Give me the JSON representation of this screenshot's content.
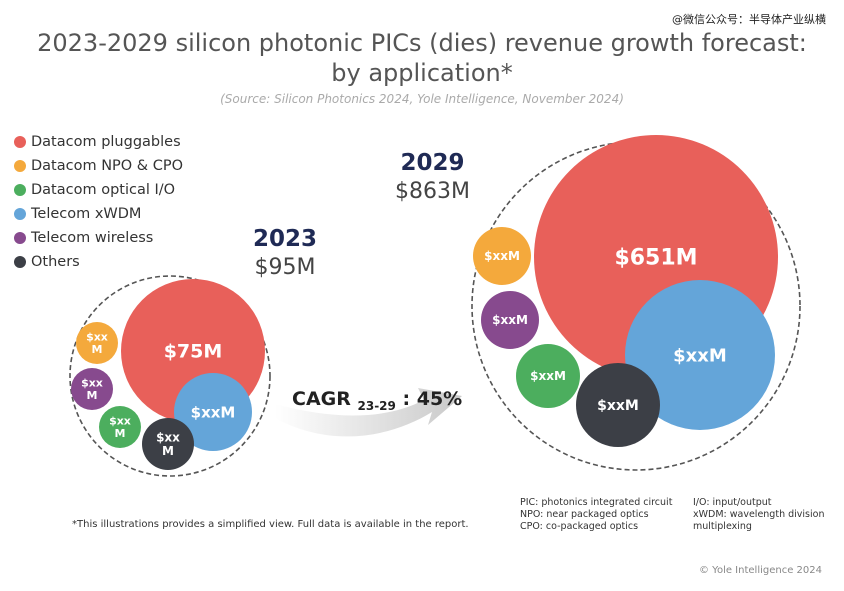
{
  "watermark": "@微信公众号：半导体产业纵横",
  "title_line1": "2023-2029 silicon photonic PICs (dies) revenue growth forecast:",
  "title_line2": "by application*",
  "source": "(Source: Silicon Photonics 2024, Yole Intelligence, November 2024)",
  "colors": {
    "datacom_pluggables": "#e8605a",
    "datacom_npo_cpo": "#f4a93c",
    "datacom_optical_io": "#4cae5e",
    "telecom_xwdm": "#64a5d9",
    "telecom_wireless": "#874a8e",
    "others": "#3c3f46"
  },
  "cagr": {
    "label": "CAGR",
    "sub": "23-29",
    "value": ": 45%"
  },
  "footnote": "*This illustrations provides a simplified view. Full data is available in the report.",
  "glossary": {
    "left": [
      "PIC: photonics integrated circuit",
      "NPO: near packaged optics",
      "CPO: co-packaged optics"
    ],
    "right": [
      "I/O: input/output",
      "xWDM: wavelength division",
      "multiplexing"
    ]
  },
  "copyright": "© Yole Intelligence 2024",
  "chart_data": {
    "type": "bubble",
    "legend_position": "top-left",
    "legend": [
      {
        "name": "Datacom pluggables",
        "color": "#e8605a"
      },
      {
        "name": "Datacom NPO & CPO",
        "color": "#f4a93c"
      },
      {
        "name": "Datacom optical I/O",
        "color": "#4cae5e"
      },
      {
        "name": "Telecom xWDM",
        "color": "#64a5d9"
      },
      {
        "name": "Telecom wireless",
        "color": "#874a8e"
      },
      {
        "name": "Others",
        "color": "#3c3f46"
      }
    ],
    "groups": [
      {
        "year": "2023",
        "total_label": "$95M",
        "total_value": 95,
        "bubbles": [
          {
            "series": "Datacom pluggables",
            "label": "$75M",
            "value": 75
          },
          {
            "series": "Telecom xWDM",
            "label": "$xxM",
            "value": null
          },
          {
            "series": "Datacom NPO & CPO",
            "label": "$xx M",
            "value": null
          },
          {
            "series": "Telecom wireless",
            "label": "$xx M",
            "value": null
          },
          {
            "series": "Datacom optical I/O",
            "label": "$xx M",
            "value": null
          },
          {
            "series": "Others",
            "label": "$xx M",
            "value": null
          }
        ]
      },
      {
        "year": "2029",
        "total_label": "$863M",
        "total_value": 863,
        "bubbles": [
          {
            "series": "Datacom pluggables",
            "label": "$651M",
            "value": 651
          },
          {
            "series": "Telecom xWDM",
            "label": "$xxM",
            "value": null
          },
          {
            "series": "Datacom NPO & CPO",
            "label": "$xxM",
            "value": null
          },
          {
            "series": "Telecom wireless",
            "label": "$xxM",
            "value": null
          },
          {
            "series": "Datacom optical I/O",
            "label": "$xxM",
            "value": null
          },
          {
            "series": "Others",
            "label": "$xxM",
            "value": null
          }
        ]
      }
    ]
  }
}
